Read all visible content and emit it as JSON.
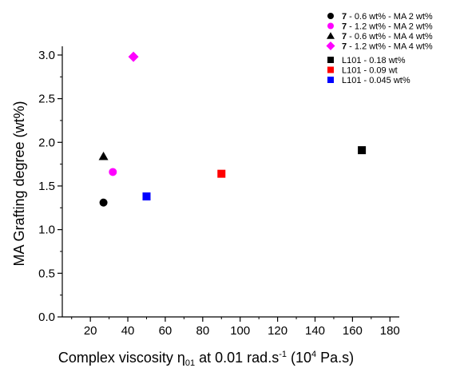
{
  "chart_data": {
    "type": "scatter",
    "title": "",
    "xlabel": {
      "main": "Complex viscosity η",
      "sub": "01",
      "rest": " at 0.01 rad.s",
      "sup1": "-1",
      "paren": " (10",
      "sup2": "4",
      "end": " Pa.s)"
    },
    "ylabel": "MA Grafting degree (wt%)",
    "xlim": [
      5,
      185
    ],
    "ylim": [
      0,
      3.1
    ],
    "xticks": [
      20,
      40,
      60,
      80,
      100,
      120,
      140,
      160,
      180
    ],
    "yticks": [
      0.0,
      0.5,
      1.0,
      1.5,
      2.0,
      2.5,
      3.0
    ],
    "xtick_labels": [
      "20",
      "40",
      "60",
      "80",
      "100",
      "120",
      "140",
      "160",
      "180"
    ],
    "ytick_labels": [
      "0.0",
      "0.5",
      "1.0",
      "1.5",
      "2.0",
      "2.5",
      "3.0"
    ],
    "grid": false,
    "legend_position": "top-right",
    "series": [
      {
        "name_bold": "7",
        "name": " - 0.6 wt% - MA 2 wt%",
        "marker": "circle",
        "color": "#000000",
        "points": [
          {
            "x": 27,
            "y": 1.31
          }
        ]
      },
      {
        "name_bold": "7",
        "name": " - 1.2 wt% - MA 2 wt%",
        "marker": "circle",
        "color": "#ff00ff",
        "points": [
          {
            "x": 32,
            "y": 1.66
          }
        ]
      },
      {
        "name_bold": "7",
        "name": " - 0.6 wt% - MA 4 wt%",
        "marker": "triangle",
        "color": "#000000",
        "points": [
          {
            "x": 27,
            "y": 1.84
          }
        ]
      },
      {
        "name_bold": "7",
        "name": " - 1.2 wt% - MA 4 wt%",
        "marker": "diamond",
        "color": "#ff00ff",
        "points": [
          {
            "x": 43,
            "y": 2.98
          }
        ]
      },
      {
        "name_bold": "",
        "name": "L101 - 0.18 wt%",
        "marker": "square",
        "color": "#000000",
        "points": [
          {
            "x": 165,
            "y": 1.91
          }
        ]
      },
      {
        "name_bold": "",
        "name": "L101 - 0.09 wt",
        "marker": "square",
        "color": "#ff0000",
        "points": [
          {
            "x": 90,
            "y": 1.64
          }
        ]
      },
      {
        "name_bold": "",
        "name": "L101 - 0.045 wt%",
        "marker": "square",
        "color": "#0000ff",
        "points": [
          {
            "x": 50,
            "y": 1.38
          }
        ]
      }
    ]
  }
}
